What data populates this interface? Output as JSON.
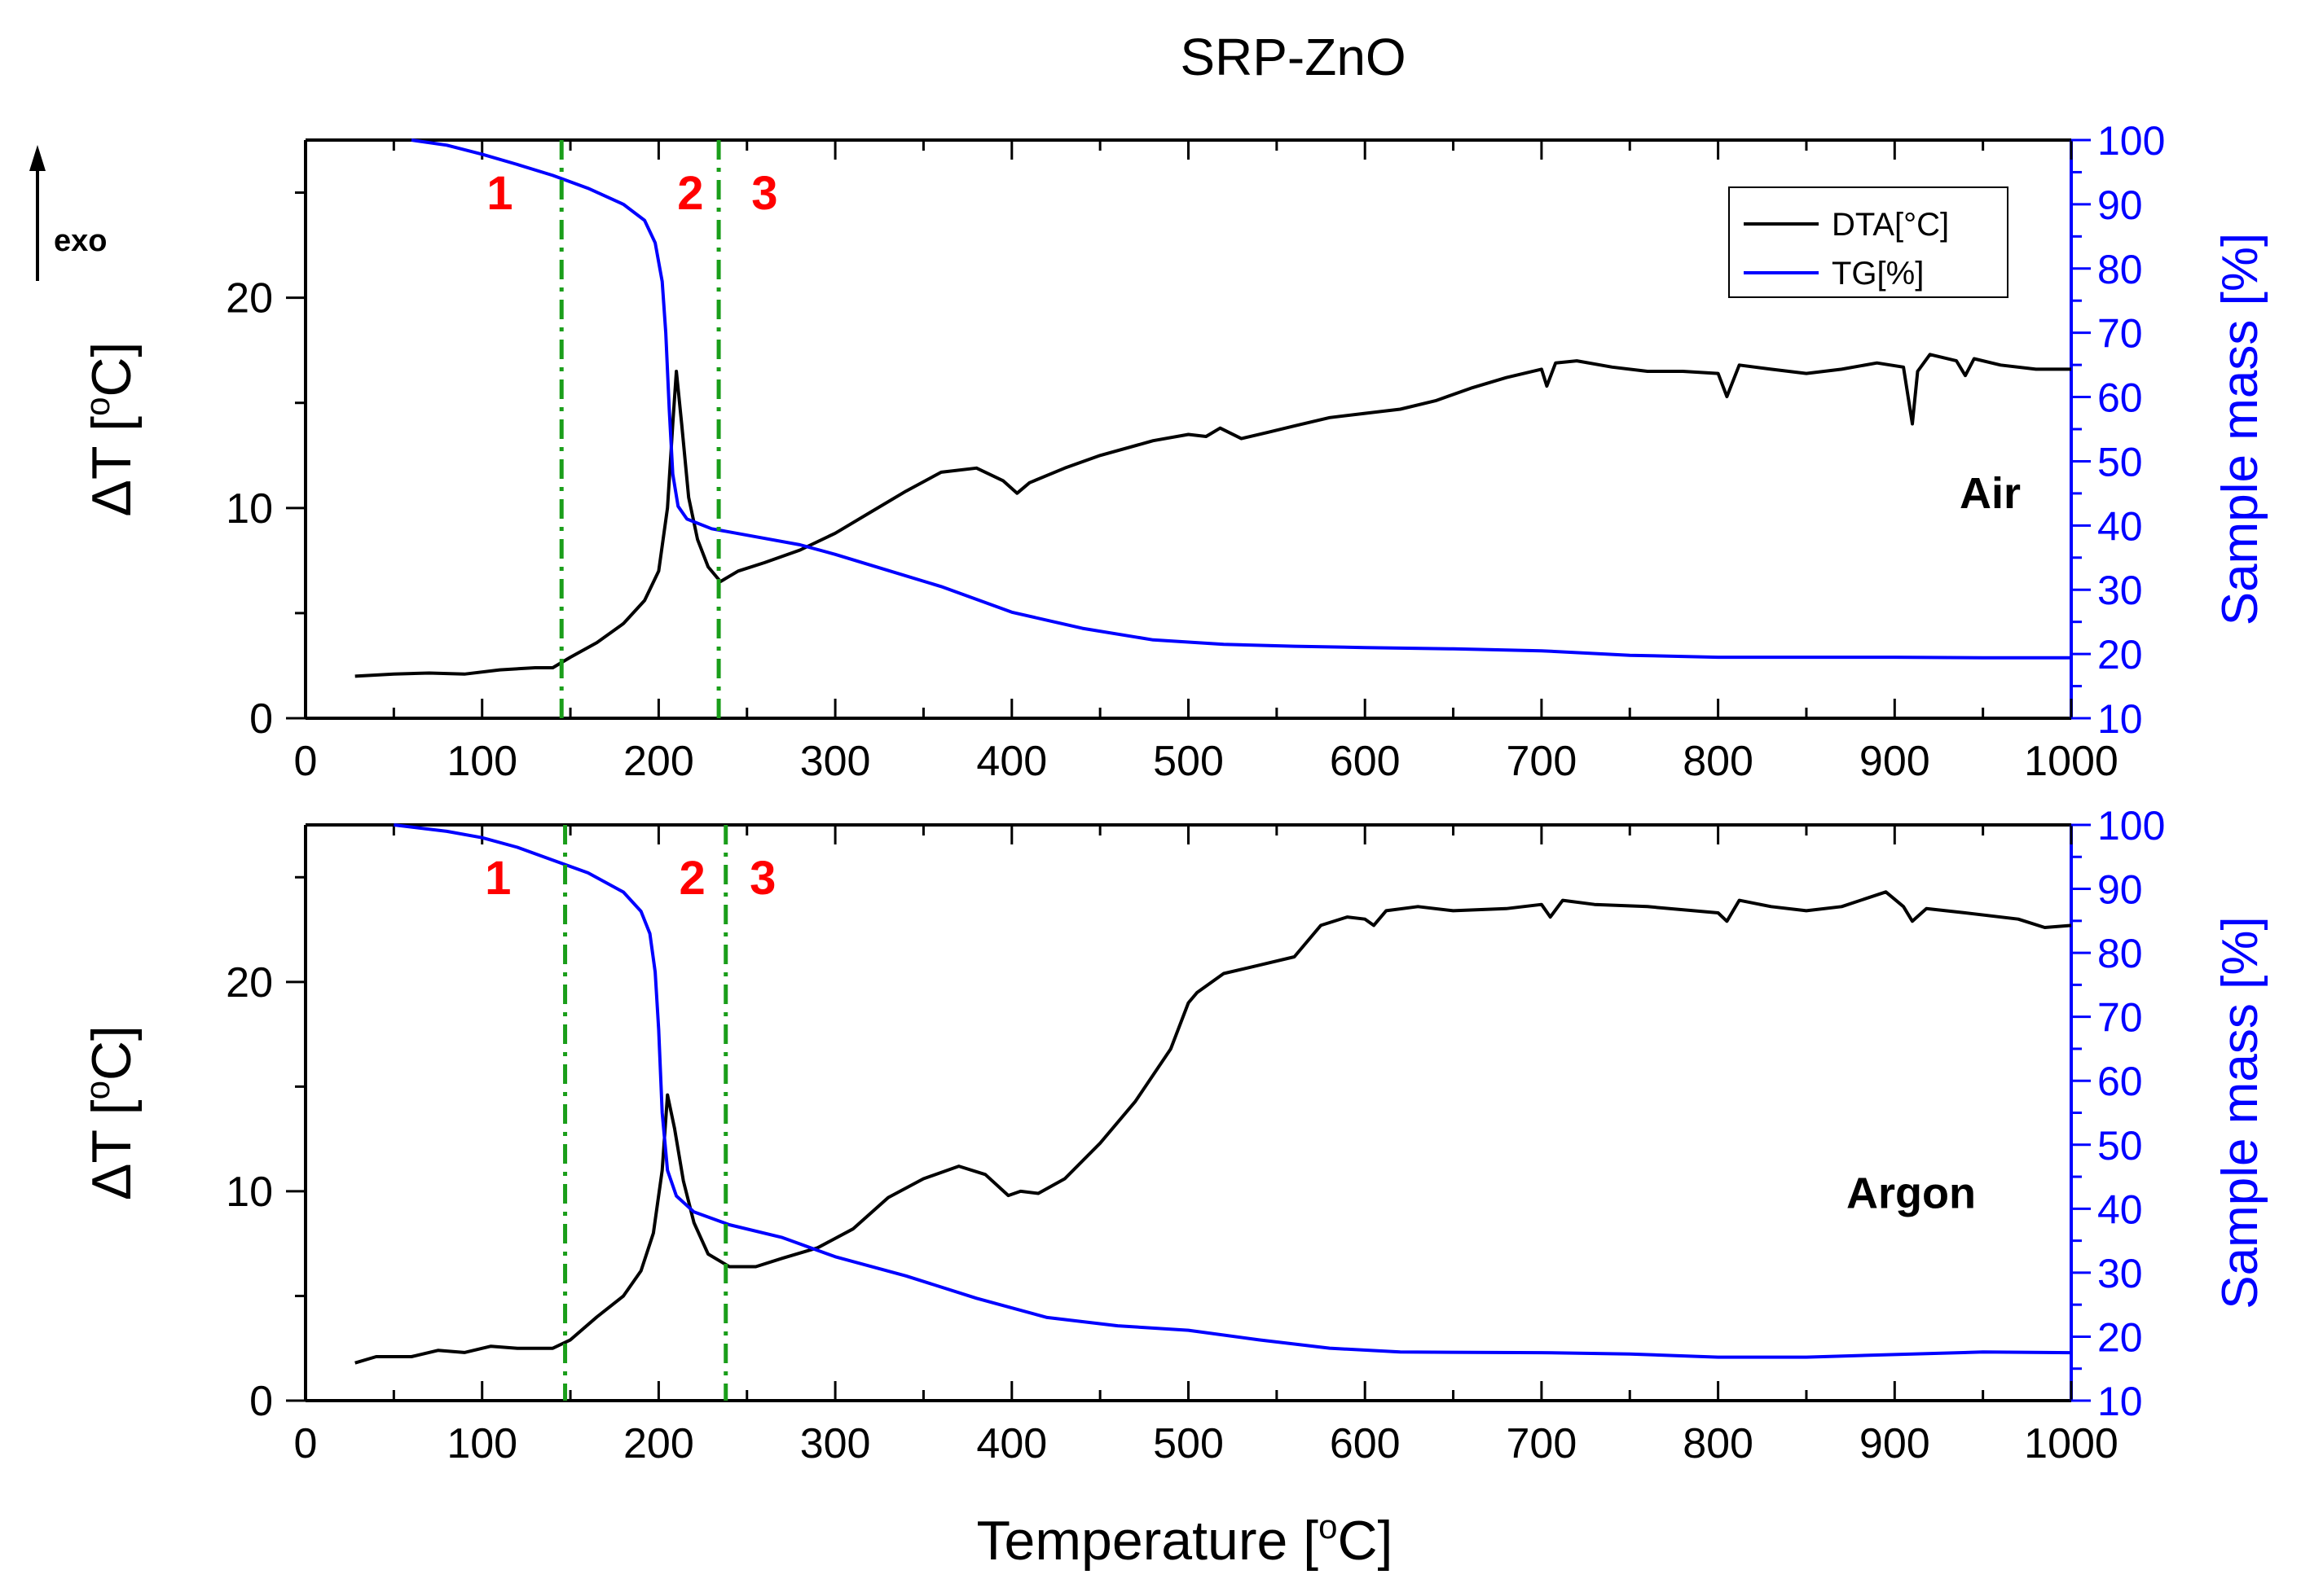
{
  "chart_data": {
    "type": "line",
    "title": "SRP-ZnO",
    "exo_label": "exo",
    "xlabel": "Temperature [",
    "xlabel_sup": "o",
    "xlabel_end": "C]",
    "xlim": [
      0,
      1000
    ],
    "x_ticks": [
      "0",
      "100",
      "200",
      "300",
      "400",
      "500",
      "600",
      "700",
      "800",
      "900",
      "1000"
    ],
    "colors": {
      "dta": "#000000",
      "tg": "#0000ff",
      "boundary": "#1a9e1a",
      "region": "#ff0000"
    },
    "legend": {
      "position": "top-right",
      "entries": [
        "DTA[°C]",
        "TG[%]"
      ]
    },
    "panels": [
      {
        "atmosphere": "Air",
        "ylabel_left": "ΔT [",
        "ylabel_left_sup": "o",
        "ylabel_left_end": "C]",
        "ylim_left": [
          0,
          27.5
        ],
        "left_ticks": [
          "0",
          "10",
          "20"
        ],
        "ylabel_right": "Sample mass [%]",
        "ylim_right": [
          10,
          100
        ],
        "right_ticks": [
          "10",
          "20",
          "30",
          "40",
          "50",
          "60",
          "70",
          "80",
          "90",
          "100"
        ],
        "boundaries": [
          145,
          234
        ],
        "region_labels": [
          {
            "text": "1",
            "x": 110
          },
          {
            "text": "2",
            "x": 218
          },
          {
            "text": "3",
            "x": 260
          }
        ],
        "series": [
          {
            "name": "DTA[°C]",
            "color": "#000000",
            "points": [
              [
                28,
                2.0
              ],
              [
                50,
                2.1
              ],
              [
                70,
                2.15
              ],
              [
                90,
                2.1
              ],
              [
                110,
                2.3
              ],
              [
                130,
                2.4
              ],
              [
                140,
                2.4
              ],
              [
                150,
                2.9
              ],
              [
                165,
                3.6
              ],
              [
                180,
                4.5
              ],
              [
                192,
                5.6
              ],
              [
                200,
                7.0
              ],
              [
                205,
                10.0
              ],
              [
                208,
                14.0
              ],
              [
                210,
                16.5
              ],
              [
                213,
                14.0
              ],
              [
                217,
                10.5
              ],
              [
                222,
                8.5
              ],
              [
                228,
                7.2
              ],
              [
                235,
                6.5
              ],
              [
                245,
                7.0
              ],
              [
                260,
                7.4
              ],
              [
                280,
                8.0
              ],
              [
                300,
                8.8
              ],
              [
                320,
                9.8
              ],
              [
                340,
                10.8
              ],
              [
                360,
                11.7
              ],
              [
                380,
                11.9
              ],
              [
                395,
                11.3
              ],
              [
                403,
                10.7
              ],
              [
                410,
                11.2
              ],
              [
                430,
                11.9
              ],
              [
                450,
                12.5
              ],
              [
                480,
                13.2
              ],
              [
                500,
                13.5
              ],
              [
                510,
                13.4
              ],
              [
                518,
                13.8
              ],
              [
                530,
                13.3
              ],
              [
                545,
                13.6
              ],
              [
                560,
                13.9
              ],
              [
                580,
                14.3
              ],
              [
                600,
                14.5
              ],
              [
                620,
                14.7
              ],
              [
                640,
                15.1
              ],
              [
                660,
                15.7
              ],
              [
                680,
                16.2
              ],
              [
                700,
                16.6
              ],
              [
                703,
                15.8
              ],
              [
                708,
                16.9
              ],
              [
                720,
                17.0
              ],
              [
                740,
                16.7
              ],
              [
                760,
                16.5
              ],
              [
                780,
                16.5
              ],
              [
                800,
                16.4
              ],
              [
                805,
                15.3
              ],
              [
                812,
                16.8
              ],
              [
                830,
                16.6
              ],
              [
                850,
                16.4
              ],
              [
                870,
                16.6
              ],
              [
                890,
                16.9
              ],
              [
                905,
                16.7
              ],
              [
                910,
                14.0
              ],
              [
                913,
                16.5
              ],
              [
                920,
                17.3
              ],
              [
                935,
                17.0
              ],
              [
                940,
                16.3
              ],
              [
                945,
                17.1
              ],
              [
                960,
                16.8
              ],
              [
                980,
                16.6
              ],
              [
                1000,
                16.6
              ]
            ]
          },
          {
            "name": "TG[%]",
            "color": "#0000ff",
            "points": [
              [
                60,
                100
              ],
              [
                80,
                99.2
              ],
              [
                100,
                97.8
              ],
              [
                120,
                96.2
              ],
              [
                140,
                94.5
              ],
              [
                160,
                92.5
              ],
              [
                180,
                90.0
              ],
              [
                192,
                87.5
              ],
              [
                198,
                84.0
              ],
              [
                202,
                78.0
              ],
              [
                204,
                70.0
              ],
              [
                206,
                58.0
              ],
              [
                208,
                48.0
              ],
              [
                211,
                43.0
              ],
              [
                216,
                41.0
              ],
              [
                230,
                39.5
              ],
              [
                250,
                38.5
              ],
              [
                280,
                37.0
              ],
              [
                300,
                35.5
              ],
              [
                330,
                33.0
              ],
              [
                360,
                30.5
              ],
              [
                400,
                26.5
              ],
              [
                440,
                24.0
              ],
              [
                480,
                22.2
              ],
              [
                520,
                21.5
              ],
              [
                560,
                21.2
              ],
              [
                600,
                21.0
              ],
              [
                650,
                20.8
              ],
              [
                700,
                20.5
              ],
              [
                750,
                19.8
              ],
              [
                800,
                19.5
              ],
              [
                850,
                19.5
              ],
              [
                900,
                19.5
              ],
              [
                950,
                19.4
              ],
              [
                1000,
                19.4
              ]
            ]
          }
        ]
      },
      {
        "atmosphere": "Argon",
        "ylabel_left": "ΔT [",
        "ylabel_left_sup": "o",
        "ylabel_left_end": "C]",
        "ylim_left": [
          0,
          27.5
        ],
        "left_ticks": [
          "0",
          "10",
          "20"
        ],
        "ylabel_right": "Sample mass [%]",
        "ylim_right": [
          10,
          100
        ],
        "right_ticks": [
          "10",
          "20",
          "30",
          "40",
          "50",
          "60",
          "70",
          "80",
          "90",
          "100"
        ],
        "boundaries": [
          147,
          238
        ],
        "region_labels": [
          {
            "text": "1",
            "x": 109
          },
          {
            "text": "2",
            "x": 219
          },
          {
            "text": "3",
            "x": 259
          }
        ],
        "series": [
          {
            "name": "DTA[°C]",
            "color": "#000000",
            "points": [
              [
                28,
                1.8
              ],
              [
                40,
                2.1
              ],
              [
                60,
                2.1
              ],
              [
                75,
                2.4
              ],
              [
                90,
                2.3
              ],
              [
                105,
                2.6
              ],
              [
                120,
                2.5
              ],
              [
                140,
                2.5
              ],
              [
                150,
                2.9
              ],
              [
                165,
                4.0
              ],
              [
                180,
                5.0
              ],
              [
                190,
                6.2
              ],
              [
                197,
                8.0
              ],
              [
                202,
                11.0
              ],
              [
                205,
                14.6
              ],
              [
                209,
                13.0
              ],
              [
                214,
                10.5
              ],
              [
                220,
                8.5
              ],
              [
                228,
                7.0
              ],
              [
                240,
                6.4
              ],
              [
                255,
                6.4
              ],
              [
                270,
                6.8
              ],
              [
                290,
                7.3
              ],
              [
                310,
                8.2
              ],
              [
                330,
                9.7
              ],
              [
                350,
                10.6
              ],
              [
                370,
                11.2
              ],
              [
                385,
                10.8
              ],
              [
                398,
                9.8
              ],
              [
                405,
                10.0
              ],
              [
                415,
                9.9
              ],
              [
                430,
                10.6
              ],
              [
                450,
                12.3
              ],
              [
                470,
                14.3
              ],
              [
                490,
                16.8
              ],
              [
                500,
                19.0
              ],
              [
                505,
                19.5
              ],
              [
                520,
                20.4
              ],
              [
                540,
                20.8
              ],
              [
                560,
                21.2
              ],
              [
                575,
                22.7
              ],
              [
                590,
                23.1
              ],
              [
                600,
                23.0
              ],
              [
                605,
                22.7
              ],
              [
                612,
                23.4
              ],
              [
                630,
                23.6
              ],
              [
                650,
                23.4
              ],
              [
                680,
                23.5
              ],
              [
                700,
                23.7
              ],
              [
                705,
                23.1
              ],
              [
                712,
                23.9
              ],
              [
                730,
                23.7
              ],
              [
                760,
                23.6
              ],
              [
                800,
                23.3
              ],
              [
                805,
                22.9
              ],
              [
                812,
                23.9
              ],
              [
                830,
                23.6
              ],
              [
                850,
                23.4
              ],
              [
                870,
                23.6
              ],
              [
                895,
                24.3
              ],
              [
                905,
                23.6
              ],
              [
                910,
                22.9
              ],
              [
                918,
                23.5
              ],
              [
                940,
                23.3
              ],
              [
                970,
                23.0
              ],
              [
                985,
                22.6
              ],
              [
                1000,
                22.7
              ]
            ]
          },
          {
            "name": "TG[%]",
            "color": "#0000ff",
            "points": [
              [
                50,
                100
              ],
              [
                80,
                99.0
              ],
              [
                100,
                98.0
              ],
              [
                120,
                96.5
              ],
              [
                140,
                94.5
              ],
              [
                160,
                92.5
              ],
              [
                180,
                89.5
              ],
              [
                190,
                86.5
              ],
              [
                195,
                83.0
              ],
              [
                198,
                77.0
              ],
              [
                200,
                68.0
              ],
              [
                202,
                55.0
              ],
              [
                205,
                46.0
              ],
              [
                210,
                42.0
              ],
              [
                220,
                39.5
              ],
              [
                240,
                37.5
              ],
              [
                270,
                35.5
              ],
              [
                300,
                32.5
              ],
              [
                340,
                29.5
              ],
              [
                380,
                26.0
              ],
              [
                420,
                23.0
              ],
              [
                460,
                21.7
              ],
              [
                500,
                21.0
              ],
              [
                540,
                19.5
              ],
              [
                580,
                18.2
              ],
              [
                620,
                17.6
              ],
              [
                700,
                17.5
              ],
              [
                750,
                17.3
              ],
              [
                800,
                16.8
              ],
              [
                850,
                16.8
              ],
              [
                900,
                17.2
              ],
              [
                950,
                17.6
              ],
              [
                1000,
                17.5
              ]
            ]
          }
        ]
      }
    ]
  }
}
